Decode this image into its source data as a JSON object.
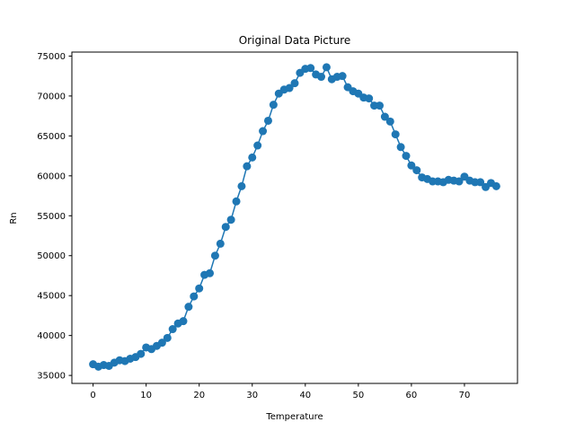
{
  "chart_data": {
    "type": "line",
    "title": "Original Data Picture",
    "xlabel": "Temperature",
    "ylabel": "Rn",
    "xlim": [
      -4,
      80
    ],
    "ylim": [
      34000,
      75500
    ],
    "xticks": [
      0,
      10,
      20,
      30,
      40,
      50,
      60,
      70
    ],
    "yticks": [
      35000,
      40000,
      45000,
      50000,
      55000,
      60000,
      65000,
      70000,
      75000
    ],
    "xtick_labels": [
      "0",
      "10",
      "20",
      "30",
      "40",
      "50",
      "60",
      "70"
    ],
    "ytick_labels": [
      "35000",
      "40000",
      "45000",
      "50000",
      "55000",
      "60000",
      "65000",
      "70000",
      "75000"
    ],
    "grid": false,
    "marker": "circle",
    "color": "#1f77b4",
    "series": [
      {
        "x": [
          0,
          1,
          2,
          3,
          4,
          5,
          6,
          7,
          8,
          9,
          10,
          11,
          12,
          13,
          14,
          15,
          16,
          17,
          18,
          19,
          20,
          21,
          22,
          23,
          24,
          25,
          26,
          27,
          28,
          29,
          30,
          31,
          32,
          33,
          34,
          35,
          36,
          37,
          38,
          39,
          40,
          41,
          42,
          43,
          44,
          45,
          46,
          47,
          48,
          49,
          50,
          51,
          52,
          53,
          54,
          55,
          56,
          57,
          58,
          59,
          60,
          61,
          62,
          63,
          64,
          65,
          66,
          67,
          68,
          69,
          70,
          71,
          72,
          73,
          74,
          75,
          76
        ],
        "values": [
          36400,
          36100,
          36300,
          36200,
          36600,
          36900,
          36800,
          37100,
          37300,
          37700,
          38500,
          38300,
          38700,
          39100,
          39700,
          40800,
          41500,
          41800,
          43600,
          44900,
          45900,
          47600,
          47800,
          50000,
          51500,
          53600,
          54500,
          56800,
          58700,
          61200,
          62300,
          63800,
          65600,
          66900,
          68900,
          70300,
          70800,
          71000,
          71600,
          72900,
          73400,
          73500,
          72700,
          72400,
          73600,
          72100,
          72400,
          72500,
          71100,
          70600,
          70300,
          69800,
          69700,
          68800,
          68800,
          67400,
          66800,
          65200,
          63600,
          62500,
          61300,
          60700,
          59800,
          59600,
          59300,
          59300,
          59200,
          59500,
          59400,
          59300,
          59900,
          59400,
          59200,
          59200,
          58600,
          59100,
          58700
        ]
      }
    ]
  }
}
